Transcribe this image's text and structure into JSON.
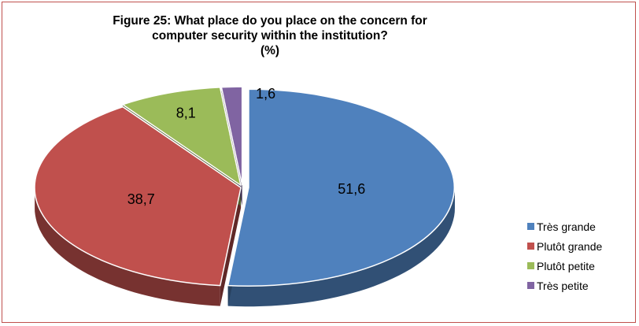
{
  "chart_data": {
    "type": "pie",
    "title_lines": [
      "Figure 25: What place do you place on the concern for",
      "computer security within the institution?",
      "(%)"
    ],
    "categories": [
      "Très grande",
      "Plutôt grande",
      "Plutôt petite",
      "Très petite"
    ],
    "values": [
      51.6,
      38.7,
      8.1,
      1.6
    ],
    "data_labels": [
      "51,6",
      "38,7",
      "8,1",
      "1,6"
    ],
    "colors": [
      "#4f81bd",
      "#c0504d",
      "#9bbb59",
      "#8064a2"
    ],
    "legend_position": "right",
    "style": "3d-exploded"
  }
}
